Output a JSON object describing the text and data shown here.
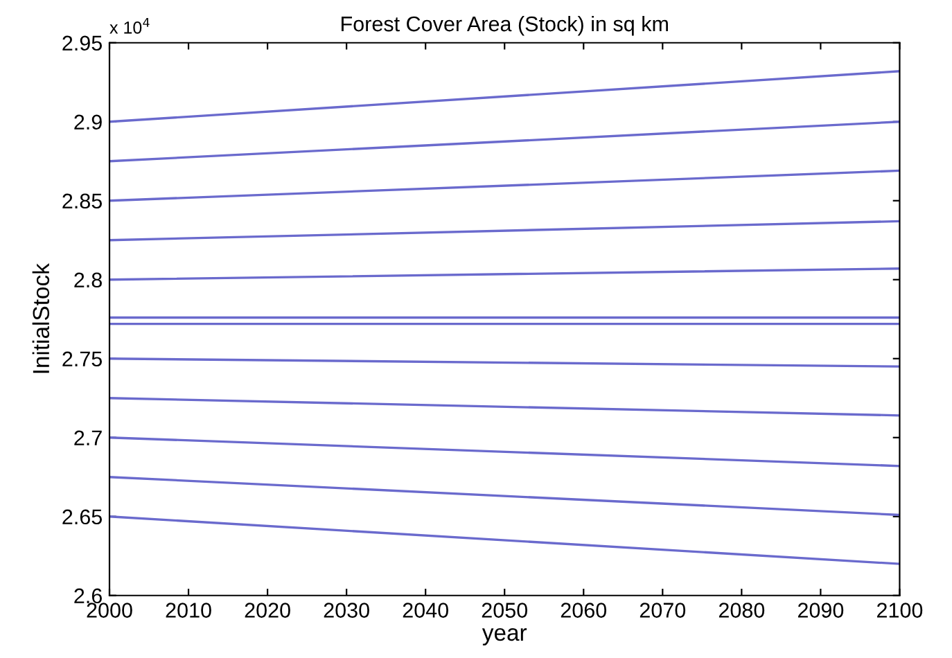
{
  "chart_data": {
    "type": "line",
    "title": "Forest Cover Area (Stock) in sq km",
    "xlabel": "year",
    "ylabel": "InitialStock",
    "annotations": [
      "x 10$^{4}$"
    ],
    "x": [
      2000,
      2100
    ],
    "series": [
      {
        "color": "#6a6acd",
        "values": [
          2.9,
          2.932
        ]
      },
      {
        "color": "#6a6acd",
        "values": [
          2.875,
          2.9
        ]
      },
      {
        "color": "#6a6acd",
        "values": [
          2.85,
          2.869
        ]
      },
      {
        "color": "#6a6acd",
        "values": [
          2.825,
          2.837
        ]
      },
      {
        "color": "#6a6acd",
        "values": [
          2.8,
          2.807
        ]
      },
      {
        "color": "#6a6acd",
        "values": [
          2.776,
          2.776
        ]
      },
      {
        "color": "#6a6acd",
        "values": [
          2.772,
          2.772
        ]
      },
      {
        "color": "#6a6acd",
        "values": [
          2.75,
          2.745
        ]
      },
      {
        "color": "#6a6acd",
        "values": [
          2.725,
          2.714
        ]
      },
      {
        "color": "#6a6acd",
        "values": [
          2.7,
          2.682
        ]
      },
      {
        "color": "#6a6acd",
        "values": [
          2.675,
          2.651
        ]
      },
      {
        "color": "#6a6acd",
        "values": [
          2.65,
          2.62
        ]
      }
    ],
    "xlim": [
      2000,
      2100
    ],
    "xticks": [
      2000,
      2010,
      2020,
      2030,
      2040,
      2050,
      2060,
      2070,
      2080,
      2090,
      2100
    ],
    "ylim": [
      2.6,
      2.95
    ],
    "yticks": [
      2.6,
      2.65,
      2.7,
      2.75,
      2.8,
      2.85,
      2.9,
      2.95
    ],
    "grid": false,
    "legend": false,
    "marker": "none",
    "line_style": "solid"
  }
}
